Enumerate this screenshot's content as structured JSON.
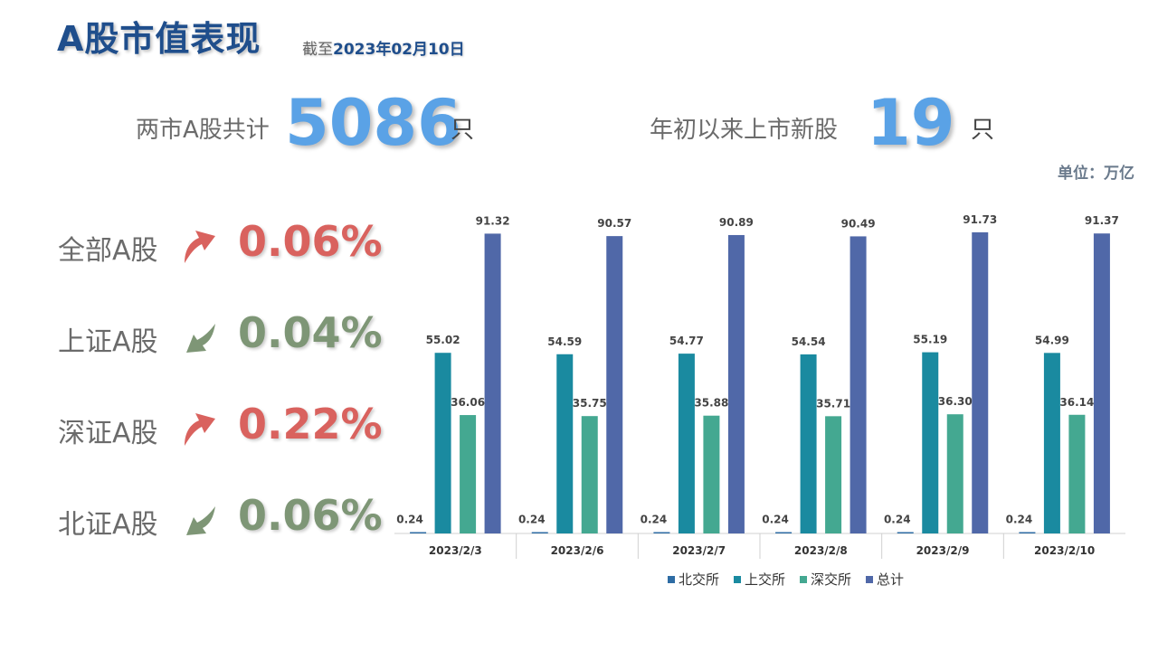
{
  "header": {
    "title": "A股市值表现",
    "subtitle_prefix": "截至",
    "subtitle_date": "2023年02月10日"
  },
  "stats": {
    "total_label": "两市A股共计",
    "total_value": "5086",
    "total_unit": "只",
    "new_label": "年初以来上市新股",
    "new_value": "19",
    "new_unit": "只"
  },
  "unit_note": "单位：万亿",
  "performance": [
    {
      "label": "全部A股",
      "value": "0.06%",
      "direction": "up",
      "color": "#d9625e"
    },
    {
      "label": "上证A股",
      "value": "0.04%",
      "direction": "down",
      "color": "#7e9676"
    },
    {
      "label": "深证A股",
      "value": "0.22%",
      "direction": "up",
      "color": "#d9625e"
    },
    {
      "label": "北证A股",
      "value": "0.06%",
      "direction": "down",
      "color": "#7e9676"
    }
  ],
  "chart_data": {
    "type": "bar",
    "categories": [
      "2023/2/3",
      "2023/2/6",
      "2023/2/7",
      "2023/2/8",
      "2023/2/9",
      "2023/2/10"
    ],
    "series": [
      {
        "name": "北交所",
        "color": "#2e6ca4",
        "values": [
          0.24,
          0.24,
          0.24,
          0.24,
          0.24,
          0.24
        ]
      },
      {
        "name": "上交所",
        "color": "#1a8aa0",
        "values": [
          55.02,
          54.59,
          54.77,
          54.54,
          55.19,
          54.99
        ]
      },
      {
        "name": "深交所",
        "color": "#44a891",
        "values": [
          36.06,
          35.75,
          35.88,
          35.71,
          36.3,
          36.14
        ]
      },
      {
        "name": "总计",
        "color": "#5068a8",
        "values": [
          91.32,
          90.57,
          90.89,
          90.49,
          91.73,
          91.37
        ]
      }
    ],
    "ylim": [
      0,
      100
    ],
    "grid": false,
    "legend": "bottom"
  }
}
